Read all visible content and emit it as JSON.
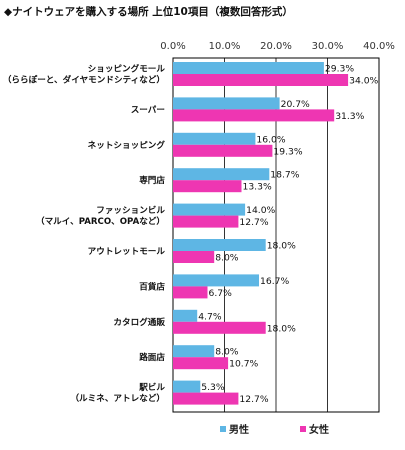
{
  "chart_data": {
    "type": "bar",
    "orientation": "horizontal",
    "title": "◆ナイトウェアを購入する場所 上位10項目（複数回答形式）",
    "xlim": [
      0,
      40
    ],
    "ticks": [
      "0.0%",
      "10.0%",
      "20.0%",
      "30.0%",
      "40.0%"
    ],
    "tick_values": [
      0,
      10,
      20,
      30,
      40
    ],
    "grid": true,
    "legend_position": "bottom",
    "categories": [
      [
        "ショッピングモール",
        "（ららぽーと、ダイヤモンドシティなど）"
      ],
      [
        "スーパー"
      ],
      [
        "ネットショッピング"
      ],
      [
        "専門店"
      ],
      [
        "ファッションビル",
        "（マルイ、PARCO、OPAなど）"
      ],
      [
        "アウトレットモール"
      ],
      [
        "百貨店"
      ],
      [
        "カタログ通販"
      ],
      [
        "路面店"
      ],
      [
        "駅ビル",
        "（ルミネ、アトレなど）"
      ]
    ],
    "series": [
      {
        "name": "男性",
        "color": "#5eb6e4",
        "values": [
          29.3,
          20.7,
          16.0,
          18.7,
          14.0,
          18.0,
          16.7,
          4.7,
          8.0,
          5.3
        ],
        "labels": [
          "29.3%",
          "20.7%",
          "16.0%",
          "18.7%",
          "14.0%",
          "18.0%",
          "16.7%",
          "4.7%",
          "8.0%",
          "5.3%"
        ]
      },
      {
        "name": "女性",
        "color": "#ee36b2",
        "values": [
          34.0,
          31.3,
          19.3,
          13.3,
          12.7,
          8.0,
          6.7,
          18.0,
          10.7,
          12.7
        ],
        "labels": [
          "34.0%",
          "31.3%",
          "19.3%",
          "13.3%",
          "12.7%",
          "8.0%",
          "6.7%",
          "18.0%",
          "10.7%",
          "12.7%"
        ]
      }
    ]
  }
}
